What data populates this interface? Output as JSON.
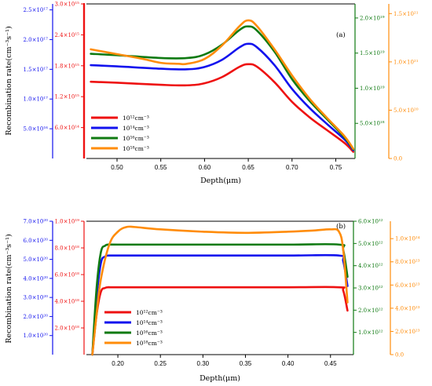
{
  "colors": {
    "red": "#ee1111",
    "blue": "#1212ee",
    "green": "#0f7a12",
    "orange": "#ff8c0a",
    "black": "#000000"
  },
  "ylabel": "Recombination rate(cm⁻³s⁻¹)",
  "chart_data": [
    {
      "type": "line",
      "panel_label": "(a)",
      "xlabel": "Depth(μm)",
      "xlim": [
        0.465,
        0.772
      ],
      "xticks": [
        "0.50",
        "0.55",
        "0.60",
        "0.65",
        "0.70",
        "0.75"
      ],
      "legend": [
        "10¹²cm⁻³",
        "10¹⁴cm⁻³",
        "10¹⁶cm⁻³",
        "10¹⁸cm⁻³"
      ],
      "axes": [
        {
          "color": "blue",
          "max": 2.6e+17,
          "ticks": [
            "5.0×10¹⁶",
            "1.0×10¹⁷",
            "1.5×10¹⁷",
            "2.0×10¹⁷",
            "2.5×10¹⁷"
          ]
        },
        {
          "color": "red",
          "max": 3000000000000000.0,
          "ticks": [
            "6.0×10¹⁴",
            "1.2×10¹⁵",
            "1.8×10¹⁵",
            "2.4×10¹⁵",
            "3.0×10¹⁵"
          ]
        },
        {
          "color": "green",
          "max": 2.2e+19,
          "ticks": [
            "5.0×10¹⁸",
            "1.0×10¹⁹",
            "1.5×10¹⁹",
            "2.0×10¹⁹"
          ]
        },
        {
          "color": "orange",
          "max": 1.6e+21,
          "ticks": [
            "0.0",
            "5.0×10²⁰",
            "1.0×10²¹",
            "1.5×10²¹"
          ]
        }
      ],
      "series": [
        {
          "name": "10¹²cm⁻³",
          "axis": "red",
          "x": [
            0.47,
            0.5,
            0.55,
            0.58,
            0.6,
            0.62,
            0.64,
            0.65,
            0.66,
            0.68,
            0.7,
            0.72,
            0.74,
            0.76,
            0.77
          ],
          "y": [
            1490000000000000.0,
            1470000000000000.0,
            1430000000000000.0,
            1420000000000000.0,
            1460000000000000.0,
            1580000000000000.0,
            1780000000000000.0,
            1830000000000000.0,
            1780000000000000.0,
            1480000000000000.0,
            1100000000000000.0,
            800000000000000.0,
            550000000000000.0,
            300000000000000.0,
            130000000000000.0
          ]
        },
        {
          "name": "10¹⁴cm⁻³",
          "axis": "blue",
          "x": [
            0.47,
            0.5,
            0.55,
            0.58,
            0.6,
            0.62,
            0.64,
            0.65,
            0.66,
            0.68,
            0.7,
            0.72,
            0.74,
            0.76,
            0.77
          ],
          "y": [
            1.57e+17,
            1.55e+17,
            1.51e+17,
            1.5e+17,
            1.54e+17,
            1.66e+17,
            1.87e+17,
            1.93e+17,
            1.87e+17,
            1.57e+17,
            1.17e+17,
            8.5e+16,
            5.8e+16,
            3.2e+16,
            1.4e+16
          ]
        },
        {
          "name": "10¹⁶cm⁻³",
          "axis": "green",
          "x": [
            0.47,
            0.5,
            0.55,
            0.58,
            0.6,
            0.62,
            0.64,
            0.65,
            0.66,
            0.68,
            0.7,
            0.72,
            0.74,
            0.76,
            0.77
          ],
          "y": [
            1.49e+19,
            1.47e+19,
            1.43e+19,
            1.43e+19,
            1.48e+19,
            1.62e+19,
            1.83e+19,
            1.88e+19,
            1.82e+19,
            1.52e+19,
            1.13e+19,
            8.2e+18,
            5.6e+18,
            3e+18,
            1.3e+18
          ]
        },
        {
          "name": "10¹⁸cm⁻³",
          "axis": "orange",
          "x": [
            0.47,
            0.5,
            0.53,
            0.55,
            0.57,
            0.58,
            0.6,
            0.62,
            0.64,
            0.65,
            0.66,
            0.68,
            0.7,
            0.72,
            0.74,
            0.76,
            0.77
          ],
          "y": [
            1.13e+21,
            1.08e+21,
            1.03e+21,
            9.9e+20,
            9.8e+20,
            9.8e+20,
            1.03e+21,
            1.17e+21,
            1.37e+21,
            1.43e+21,
            1.37e+21,
            1.13e+21,
            8.6e+20,
            6.2e+20,
            4.2e+20,
            2.3e+20,
            1e+20
          ]
        }
      ]
    },
    {
      "type": "line",
      "panel_label": "(b)",
      "xlabel": "Depth(μm)",
      "xlim": [
        0.163,
        0.477
      ],
      "xticks": [
        "0.20",
        "0.25",
        "0.30",
        "0.35",
        "0.40",
        "0.45"
      ],
      "legend": [
        "10¹²cm⁻³",
        "10¹⁴cm⁻³",
        "10¹⁶cm⁻³",
        "10¹⁸cm⁻³"
      ],
      "axes": [
        {
          "color": "blue",
          "max": 7e+20,
          "ticks": [
            "1.0×10²⁰",
            "2.0×10²⁰",
            "3.0×10²⁰",
            "4.0×10²⁰",
            "5.0×10²⁰",
            "6.0×10²⁰",
            "7.0×10²⁰"
          ]
        },
        {
          "color": "red",
          "max": 1e+19,
          "ticks": [
            "2.0×10¹⁸",
            "4.0×10¹⁸",
            "6.0×10¹⁸",
            "8.0×10¹⁸",
            "1.0×10¹⁹"
          ]
        },
        {
          "color": "green",
          "max": 6e+22,
          "ticks": [
            "1.0×10²²",
            "2.0×10²²",
            "3.0×10²²",
            "4.0×10²²",
            "5.0×10²²",
            "6.0×10²²"
          ]
        },
        {
          "color": "orange",
          "max": 1.15e+24,
          "ticks": [
            "0.0",
            "2.0×10²³",
            "4.0×10²³",
            "6.0×10²³",
            "8.0×10²³",
            "1.0×10²⁴"
          ]
        }
      ],
      "series": [
        {
          "name": "10¹²cm⁻³",
          "axis": "red",
          "x": [
            0.17,
            0.175,
            0.18,
            0.185,
            0.19,
            0.2,
            0.3,
            0.4,
            0.46,
            0.465,
            0.47
          ],
          "y": [
            0.0,
            3e+18,
            4.7e+18,
            5e+18,
            5.05e+18,
            5.05e+18,
            5.05e+18,
            5.05e+18,
            5.05e+18,
            4.8e+18,
            3.3e+18
          ]
        },
        {
          "name": "10¹⁴cm⁻³",
          "axis": "blue",
          "x": [
            0.17,
            0.175,
            0.18,
            0.185,
            0.19,
            0.2,
            0.3,
            0.4,
            0.46,
            0.465,
            0.47
          ],
          "y": [
            0.0,
            3e+20,
            4.8e+20,
            5.15e+20,
            5.2e+20,
            5.2e+20,
            5.2e+20,
            5.2e+20,
            5.2e+20,
            4.9e+20,
            3.6e+20
          ]
        },
        {
          "name": "10¹⁶cm⁻³",
          "axis": "green",
          "x": [
            0.17,
            0.175,
            0.18,
            0.185,
            0.19,
            0.2,
            0.3,
            0.4,
            0.46,
            0.465,
            0.47
          ],
          "y": [
            0.0,
            3e+22,
            4.6e+22,
            4.9e+22,
            4.95e+22,
            4.95e+22,
            4.95e+22,
            4.95e+22,
            4.95e+22,
            4.7e+22,
            3.5e+22
          ]
        },
        {
          "name": "10¹⁸cm⁻³",
          "axis": "orange",
          "x": [
            0.17,
            0.175,
            0.18,
            0.19,
            0.2,
            0.21,
            0.22,
            0.25,
            0.3,
            0.35,
            0.4,
            0.43,
            0.45,
            0.46,
            0.465,
            0.47
          ],
          "y": [
            0.0,
            3.5e+23,
            6.5e+23,
            9.5e+23,
            1.06e+24,
            1.1e+24,
            1.1e+24,
            1.08e+24,
            1.06e+24,
            1.05e+24,
            1.06e+24,
            1.07e+24,
            1.08e+24,
            1.06e+24,
            9e+23,
            4.5e+23
          ]
        }
      ]
    }
  ]
}
